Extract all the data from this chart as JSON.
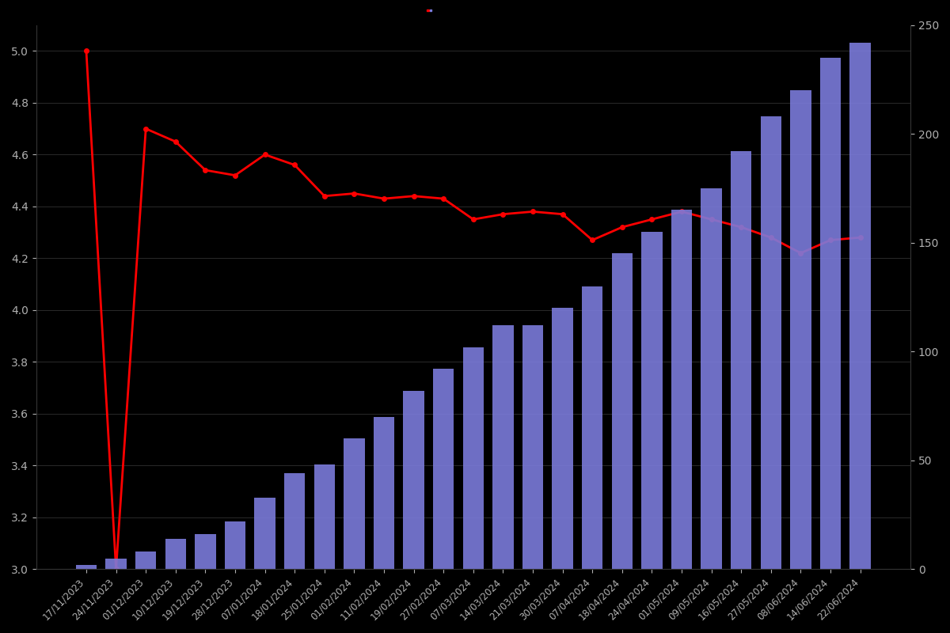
{
  "dates": [
    "17/11/2023",
    "24/11/2023",
    "01/12/2023",
    "10/12/2023",
    "19/12/2023",
    "28/12/2023",
    "07/01/2024",
    "18/01/2024",
    "25/01/2024",
    "01/02/2024",
    "11/02/2024",
    "19/02/2024",
    "27/02/2024",
    "07/03/2024",
    "14/03/2024",
    "21/03/2024",
    "30/03/2024",
    "07/04/2024",
    "18/04/2024",
    "24/04/2024",
    "01/05/2024",
    "09/05/2024",
    "16/05/2024",
    "27/05/2024",
    "08/06/2024",
    "14/06/2024",
    "22/06/2024"
  ],
  "bar_values": [
    2,
    5,
    8,
    14,
    16,
    22,
    33,
    44,
    48,
    60,
    70,
    82,
    92,
    102,
    112,
    112,
    120,
    130,
    145,
    155,
    165,
    175,
    192,
    208,
    220,
    235,
    242
  ],
  "line_values": [
    5.0,
    3.0,
    4.7,
    4.65,
    4.54,
    4.52,
    4.6,
    4.56,
    4.44,
    4.45,
    4.43,
    4.44,
    4.43,
    4.35,
    4.37,
    4.38,
    4.37,
    4.27,
    4.32,
    4.35,
    4.38,
    4.35,
    4.32,
    4.28,
    4.22,
    4.27,
    4.28
  ],
  "bar_color": "#7b7bdb",
  "line_color": "#ff0000",
  "background_color": "#000000",
  "text_color": "#b0b0b0",
  "left_ylim": [
    3.0,
    5.1
  ],
  "right_ylim": [
    0,
    250
  ],
  "left_yticks": [
    3.0,
    3.2,
    3.4,
    3.6,
    3.8,
    4.0,
    4.2,
    4.4,
    4.6,
    4.8,
    5.0
  ],
  "right_yticks": [
    0,
    50,
    100,
    150,
    200,
    250
  ],
  "marker_size": 4
}
